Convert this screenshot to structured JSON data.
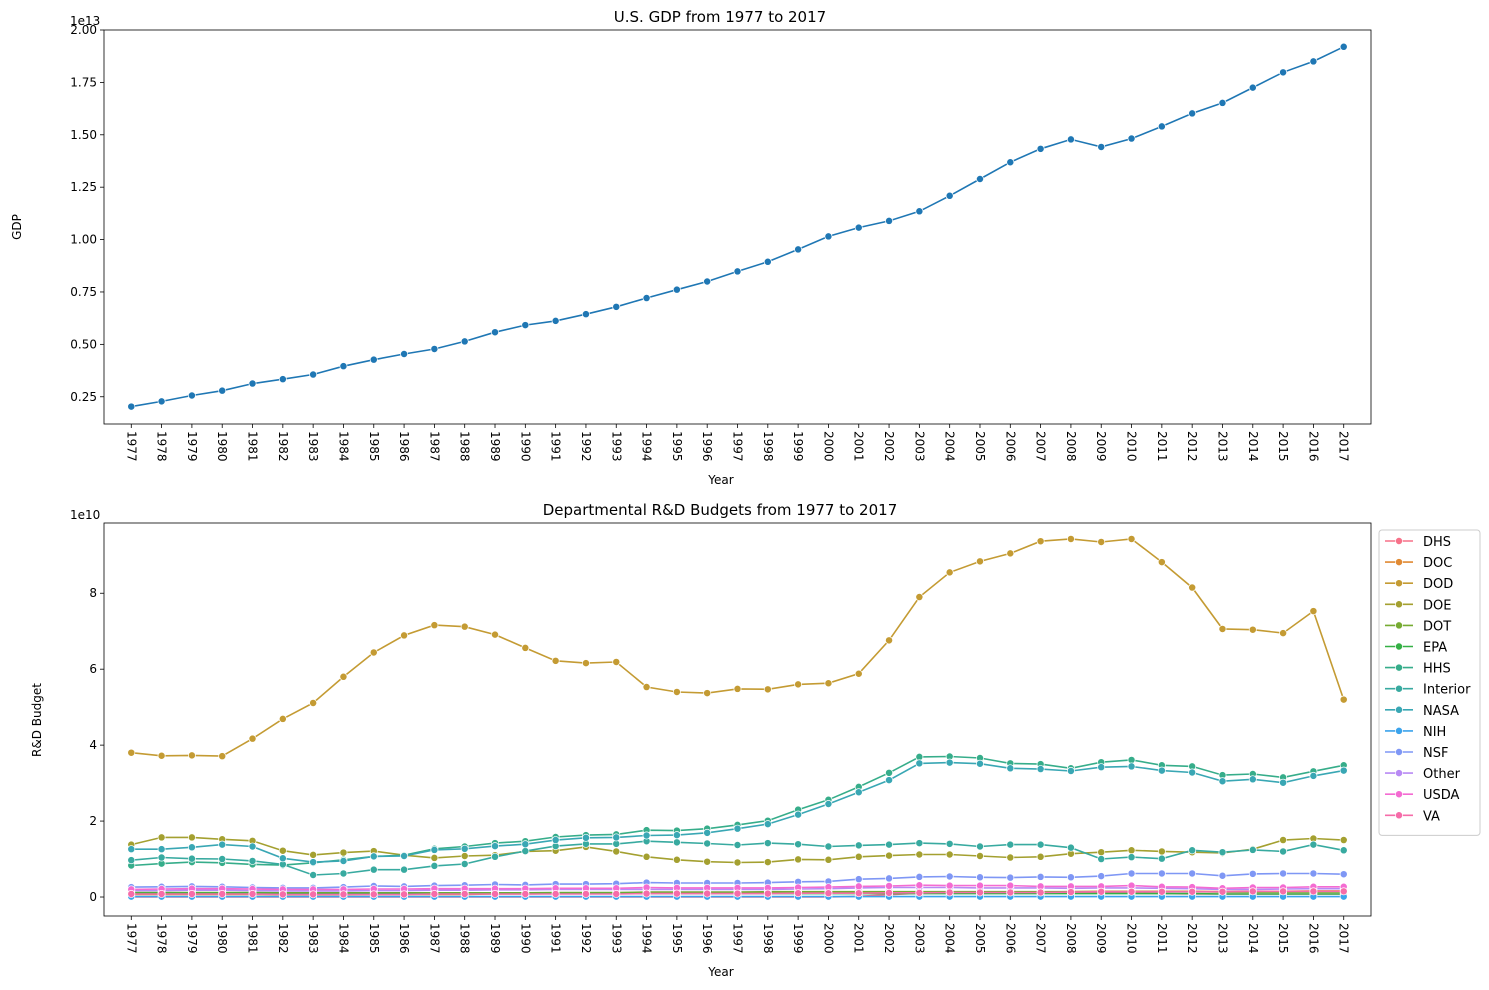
{
  "chart_data": [
    {
      "type": "line",
      "title": "U.S. GDP from 1977 to 2017",
      "xlabel": "Year",
      "ylabel": "GDP",
      "offset_label": "1e13",
      "ylim": [
        0.12,
        2.0
      ],
      "yticks": [
        "0.25",
        "0.50",
        "0.75",
        "1.00",
        "1.25",
        "1.50",
        "1.75",
        "2.00"
      ],
      "ytick_values": [
        0.25,
        0.5,
        0.75,
        1.0,
        1.25,
        1.5,
        1.75,
        2.0
      ],
      "x": [
        1977,
        1978,
        1979,
        1980,
        1981,
        1982,
        1983,
        1984,
        1985,
        1986,
        1987,
        1988,
        1989,
        1990,
        1991,
        1992,
        1993,
        1994,
        1995,
        1996,
        1997,
        1998,
        1999,
        2000,
        2001,
        2002,
        2003,
        2004,
        2005,
        2006,
        2007,
        2008,
        2009,
        2010,
        2011,
        2012,
        2013,
        2014,
        2015,
        2016,
        2017
      ],
      "series": [
        {
          "color": "#1f77b4",
          "values": [
            0.203,
            0.228,
            0.256,
            0.279,
            0.313,
            0.334,
            0.356,
            0.396,
            0.427,
            0.454,
            0.478,
            0.514,
            0.558,
            0.592,
            0.612,
            0.644,
            0.679,
            0.721,
            0.761,
            0.8,
            0.848,
            0.894,
            0.953,
            1.015,
            1.057,
            1.089,
            1.135,
            1.209,
            1.289,
            1.369,
            1.433,
            1.478,
            1.442,
            1.482,
            1.54,
            1.602,
            1.652,
            1.725,
            1.798,
            1.85,
            1.92
          ]
        }
      ]
    },
    {
      "type": "line",
      "title": "Departmental R&D Budgets from 1977 to 2017",
      "xlabel": "Year",
      "ylabel": "R&D Budget",
      "offset_label": "1e10",
      "ylim": [
        -0.5,
        9.85
      ],
      "yticks": [
        "0",
        "2",
        "4",
        "6",
        "8"
      ],
      "ytick_values": [
        0,
        2,
        4,
        6,
        8
      ],
      "legend_position": "outside-right",
      "x": [
        1977,
        1978,
        1979,
        1980,
        1981,
        1982,
        1983,
        1984,
        1985,
        1986,
        1987,
        1988,
        1989,
        1990,
        1991,
        1992,
        1993,
        1994,
        1995,
        1996,
        1997,
        1998,
        1999,
        2000,
        2001,
        2002,
        2003,
        2004,
        2005,
        2006,
        2007,
        2008,
        2009,
        2010,
        2011,
        2012,
        2013,
        2014,
        2015,
        2016,
        2017
      ],
      "series": [
        {
          "name": "DHS",
          "color": "#f77189",
          "values": [
            0,
            0,
            0,
            0,
            0,
            0,
            0,
            0,
            0,
            0,
            0,
            0,
            0,
            0,
            0,
            0,
            0,
            0,
            0,
            0,
            0,
            0,
            0,
            0,
            0.02,
            0.06,
            0.1,
            0.11,
            0.12,
            0.12,
            0.11,
            0.1,
            0.11,
            0.1,
            0.09,
            0.08,
            0.08,
            0.08,
            0.08,
            0.08,
            0.08
          ]
        },
        {
          "name": "DOC",
          "color": "#e18a33",
          "values": [
            0.07,
            0.07,
            0.07,
            0.07,
            0.07,
            0.06,
            0.06,
            0.06,
            0.07,
            0.07,
            0.07,
            0.07,
            0.08,
            0.08,
            0.09,
            0.09,
            0.09,
            0.1,
            0.1,
            0.1,
            0.1,
            0.1,
            0.11,
            0.11,
            0.12,
            0.13,
            0.13,
            0.13,
            0.13,
            0.13,
            0.13,
            0.14,
            0.15,
            0.15,
            0.15,
            0.15,
            0.14,
            0.15,
            0.15,
            0.16,
            0.16
          ]
        },
        {
          "name": "DOD",
          "color": "#c49b33",
          "values": [
            3.8,
            3.72,
            3.73,
            3.71,
            4.17,
            4.69,
            5.11,
            5.8,
            6.44,
            6.89,
            7.16,
            7.12,
            6.91,
            6.56,
            6.22,
            6.16,
            6.19,
            5.53,
            5.4,
            5.37,
            5.48,
            5.47,
            5.6,
            5.63,
            5.88,
            6.76,
            7.9,
            8.55,
            8.84,
            9.05,
            9.37,
            9.43,
            9.35,
            9.43,
            8.82,
            8.15,
            7.06,
            7.04,
            6.95,
            7.53,
            5.2
          ]
        },
        {
          "name": "DOE",
          "color": "#a4a030",
          "values": [
            1.38,
            1.57,
            1.57,
            1.52,
            1.48,
            1.22,
            1.11,
            1.17,
            1.21,
            1.1,
            1.03,
            1.08,
            1.1,
            1.2,
            1.22,
            1.32,
            1.2,
            1.06,
            0.98,
            0.93,
            0.91,
            0.92,
            0.99,
            0.98,
            1.06,
            1.09,
            1.12,
            1.12,
            1.08,
            1.04,
            1.06,
            1.14,
            1.18,
            1.23,
            1.2,
            1.18,
            1.16,
            1.26,
            1.5,
            1.54,
            1.5
          ]
        },
        {
          "name": "DOT",
          "color": "#76ab32",
          "values": [
            0.12,
            0.12,
            0.12,
            0.12,
            0.12,
            0.11,
            0.11,
            0.11,
            0.11,
            0.11,
            0.11,
            0.11,
            0.11,
            0.11,
            0.12,
            0.12,
            0.12,
            0.13,
            0.13,
            0.13,
            0.13,
            0.14,
            0.14,
            0.14,
            0.14,
            0.14,
            0.14,
            0.14,
            0.14,
            0.14,
            0.14,
            0.14,
            0.14,
            0.14,
            0.14,
            0.14,
            0.13,
            0.13,
            0.13,
            0.13,
            0.13
          ]
        },
        {
          "name": "EPA",
          "color": "#34b045",
          "values": [
            0.1,
            0.1,
            0.1,
            0.1,
            0.1,
            0.09,
            0.09,
            0.09,
            0.09,
            0.09,
            0.09,
            0.09,
            0.09,
            0.09,
            0.09,
            0.09,
            0.09,
            0.09,
            0.09,
            0.09,
            0.09,
            0.09,
            0.09,
            0.09,
            0.09,
            0.09,
            0.09,
            0.09,
            0.09,
            0.09,
            0.09,
            0.09,
            0.09,
            0.09,
            0.09,
            0.09,
            0.08,
            0.08,
            0.08,
            0.08,
            0.08
          ]
        },
        {
          "name": "HHS",
          "color": "#36ad8a",
          "values": [
            0.83,
            0.88,
            0.92,
            0.9,
            0.86,
            0.84,
            0.9,
            0.98,
            1.07,
            1.1,
            1.27,
            1.33,
            1.42,
            1.47,
            1.58,
            1.63,
            1.65,
            1.76,
            1.75,
            1.8,
            1.9,
            2.01,
            2.3,
            2.56,
            2.9,
            3.27,
            3.69,
            3.7,
            3.66,
            3.52,
            3.5,
            3.39,
            3.55,
            3.61,
            3.47,
            3.44,
            3.21,
            3.24,
            3.15,
            3.31,
            3.47
          ]
        },
        {
          "name": "Interior",
          "color": "#38aaa0",
          "values": [
            0.97,
            1.04,
            1.01,
            1.0,
            0.95,
            0.86,
            0.58,
            0.62,
            0.72,
            0.72,
            0.82,
            0.87,
            1.06,
            1.21,
            1.34,
            1.4,
            1.4,
            1.47,
            1.44,
            1.41,
            1.37,
            1.42,
            1.39,
            1.33,
            1.36,
            1.38,
            1.42,
            1.4,
            1.33,
            1.38,
            1.38,
            1.3,
            1.0,
            1.05,
            1.01,
            1.23,
            1.18,
            1.24,
            1.2,
            1.38,
            1.23
          ]
        },
        {
          "name": "NASA",
          "color": "#39a7b4",
          "values": [
            1.26,
            1.26,
            1.31,
            1.38,
            1.33,
            1.02,
            0.92,
            0.95,
            1.07,
            1.08,
            1.24,
            1.27,
            1.34,
            1.39,
            1.5,
            1.56,
            1.57,
            1.62,
            1.63,
            1.69,
            1.8,
            1.92,
            2.17,
            2.45,
            2.76,
            3.08,
            3.52,
            3.54,
            3.51,
            3.39,
            3.37,
            3.32,
            3.42,
            3.44,
            3.33,
            3.28,
            3.05,
            3.1,
            3.01,
            3.19,
            3.33
          ]
        },
        {
          "name": "NIH",
          "color": "#3ba3ec",
          "values": [
            0.01,
            0.01,
            0.01,
            0.01,
            0.01,
            0.01,
            0.01,
            0.01,
            0.01,
            0.01,
            0.01,
            0.01,
            0.01,
            0.01,
            0.01,
            0.01,
            0.01,
            0.01,
            0.01,
            0.01,
            0.01,
            0.01,
            0.01,
            0.01,
            0.01,
            0.01,
            0.01,
            0.01,
            0.01,
            0.01,
            0.01,
            0.01,
            0.01,
            0.01,
            0.01,
            0.01,
            0.01,
            0.01,
            0.01,
            0.01,
            0.01
          ]
        },
        {
          "name": "NSF",
          "color": "#7f97f5",
          "values": [
            0.26,
            0.27,
            0.28,
            0.27,
            0.25,
            0.24,
            0.24,
            0.26,
            0.29,
            0.28,
            0.3,
            0.31,
            0.33,
            0.32,
            0.34,
            0.34,
            0.35,
            0.38,
            0.37,
            0.37,
            0.37,
            0.38,
            0.4,
            0.41,
            0.47,
            0.49,
            0.53,
            0.54,
            0.52,
            0.51,
            0.53,
            0.52,
            0.55,
            0.62,
            0.62,
            0.62,
            0.56,
            0.61,
            0.62,
            0.62,
            0.6
          ]
        },
        {
          "name": "Other",
          "color": "#b88af4",
          "values": [
            0.17,
            0.17,
            0.18,
            0.18,
            0.17,
            0.16,
            0.16,
            0.16,
            0.17,
            0.17,
            0.18,
            0.18,
            0.19,
            0.19,
            0.2,
            0.2,
            0.2,
            0.2,
            0.2,
            0.2,
            0.2,
            0.2,
            0.21,
            0.22,
            0.24,
            0.25,
            0.25,
            0.25,
            0.24,
            0.24,
            0.24,
            0.23,
            0.24,
            0.24,
            0.23,
            0.22,
            0.2,
            0.2,
            0.21,
            0.22,
            0.22
          ]
        },
        {
          "name": "USDA",
          "color": "#f46bd2",
          "values": [
            0.2,
            0.21,
            0.22,
            0.22,
            0.21,
            0.2,
            0.2,
            0.2,
            0.21,
            0.21,
            0.22,
            0.22,
            0.22,
            0.22,
            0.23,
            0.23,
            0.23,
            0.25,
            0.24,
            0.24,
            0.24,
            0.24,
            0.25,
            0.26,
            0.28,
            0.29,
            0.31,
            0.3,
            0.3,
            0.3,
            0.28,
            0.28,
            0.28,
            0.3,
            0.27,
            0.26,
            0.23,
            0.25,
            0.25,
            0.27,
            0.27
          ]
        },
        {
          "name": "VA",
          "color": "#f66ca9",
          "values": [
            0.08,
            0.08,
            0.08,
            0.08,
            0.08,
            0.07,
            0.07,
            0.07,
            0.07,
            0.07,
            0.08,
            0.08,
            0.08,
            0.08,
            0.08,
            0.08,
            0.08,
            0.09,
            0.09,
            0.09,
            0.09,
            0.09,
            0.1,
            0.1,
            0.1,
            0.11,
            0.11,
            0.12,
            0.12,
            0.12,
            0.12,
            0.13,
            0.14,
            0.14,
            0.14,
            0.14,
            0.14,
            0.15,
            0.15,
            0.15,
            0.15
          ]
        }
      ]
    }
  ]
}
